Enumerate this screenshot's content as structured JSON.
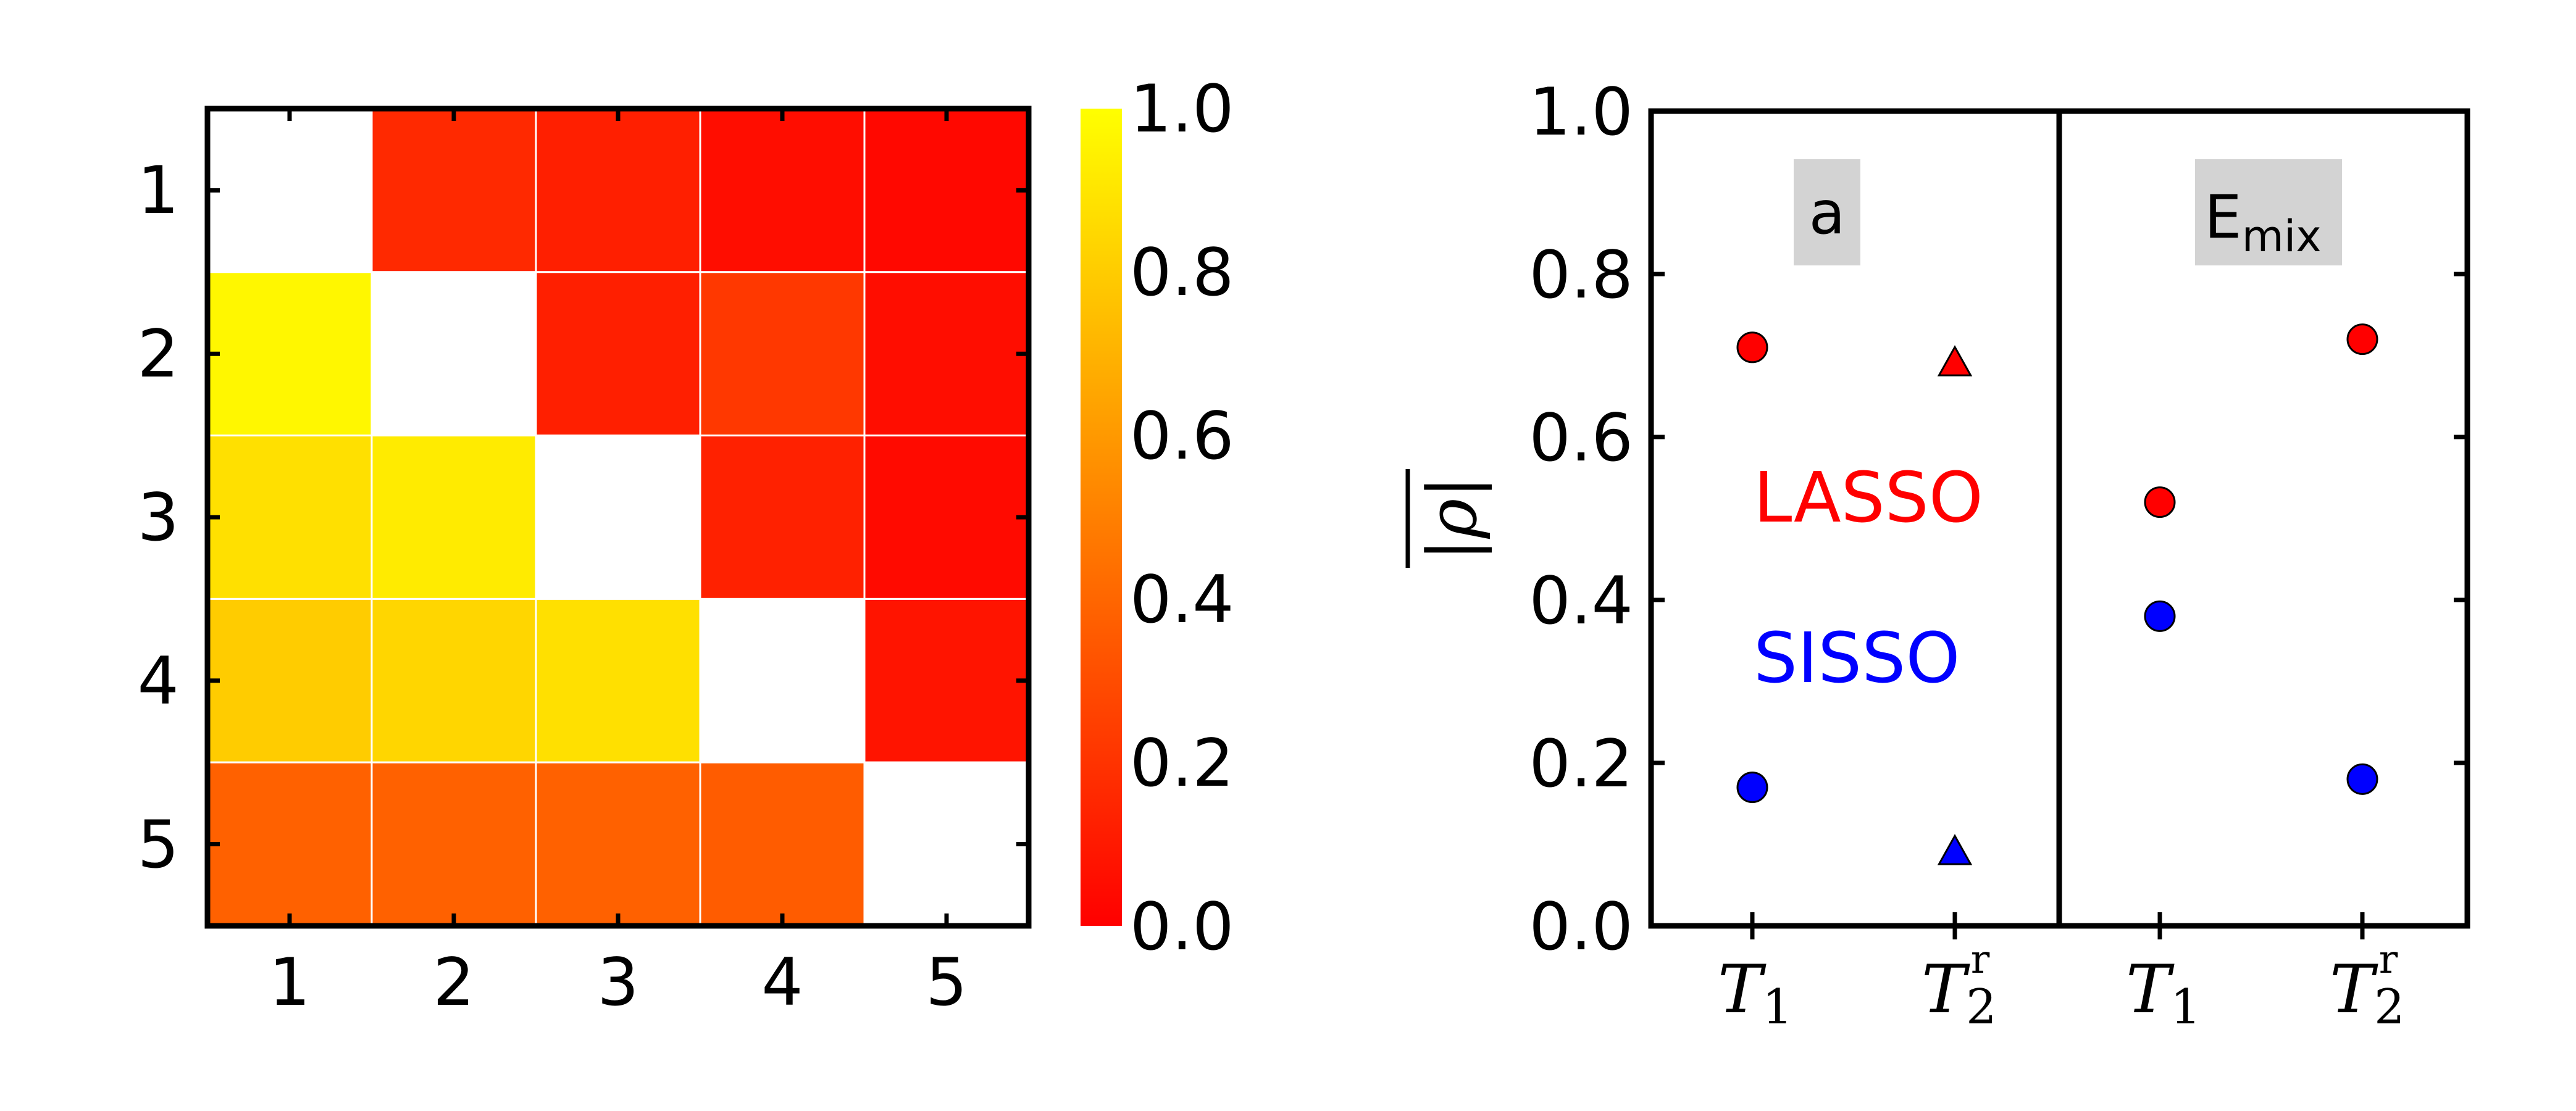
{
  "chart_data": [
    {
      "type": "heatmap",
      "title": "",
      "rows": [
        "1",
        "2",
        "3",
        "4",
        "5"
      ],
      "cols": [
        "1",
        "2",
        "3",
        "4",
        "5"
      ],
      "values": [
        [
          null,
          0.16,
          0.12,
          0.05,
          0.03
        ],
        [
          0.97,
          null,
          0.12,
          0.22,
          0.05
        ],
        [
          0.88,
          0.92,
          null,
          0.13,
          0.04
        ],
        [
          0.8,
          0.84,
          0.88,
          null,
          0.08
        ],
        [
          0.38,
          0.38,
          0.38,
          0.36,
          null
        ]
      ],
      "colorbar": {
        "range": [
          0.0,
          1.0
        ],
        "ticks": [
          "0.0",
          "0.2",
          "0.4",
          "0.6",
          "0.8",
          "1.0"
        ],
        "colormap": "autumn"
      }
    },
    {
      "type": "scatter",
      "ylabel": "|ρ|",
      "ylim": [
        0.0,
        1.0
      ],
      "yticks": [
        "0.0",
        "0.2",
        "0.4",
        "0.6",
        "0.8",
        "1.0"
      ],
      "panels": [
        {
          "label": "a",
          "x_categories": [
            "T1",
            "T2r"
          ],
          "series": [
            {
              "name": "LASSO",
              "color": "#ff0000",
              "points": [
                {
                  "x": "T1",
                  "y": 0.71,
                  "marker": "circle"
                },
                {
                  "x": "T2r",
                  "y": 0.69,
                  "marker": "triangle"
                }
              ]
            },
            {
              "name": "SISSO",
              "color": "#0000ff",
              "points": [
                {
                  "x": "T1",
                  "y": 0.17,
                  "marker": "circle"
                },
                {
                  "x": "T2r",
                  "y": 0.09,
                  "marker": "triangle"
                }
              ]
            }
          ]
        },
        {
          "label": "E",
          "label_sub": "mix",
          "x_categories": [
            "T1",
            "T2r"
          ],
          "series": [
            {
              "name": "LASSO",
              "color": "#ff0000",
              "points": [
                {
                  "x": "T1",
                  "y": 0.52,
                  "marker": "circle"
                },
                {
                  "x": "T2r",
                  "y": 0.72,
                  "marker": "circle"
                }
              ]
            },
            {
              "name": "SISSO",
              "color": "#0000ff",
              "points": [
                {
                  "x": "T1",
                  "y": 0.38,
                  "marker": "circle"
                },
                {
                  "x": "T2r",
                  "y": 0.18,
                  "marker": "circle"
                }
              ]
            }
          ]
        }
      ],
      "legend_labels": {
        "lasso": "LASSO",
        "sisso": "SISSO"
      },
      "x_tick_text": {
        "symbol": "T",
        "sub_1": "1",
        "sub_2": "2",
        "sup_r": "r"
      }
    }
  ]
}
